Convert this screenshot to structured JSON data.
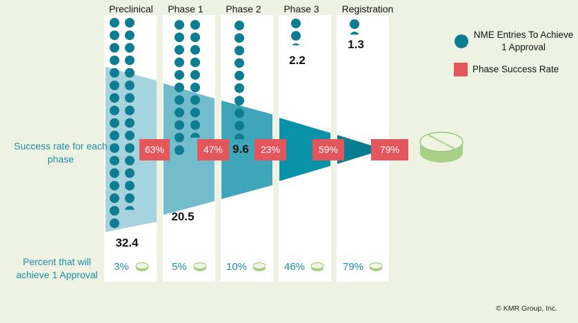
{
  "phases": [
    {
      "name": "Preclinical",
      "entries": "32.4",
      "approval_pct": "3%"
    },
    {
      "name": "Phase 1",
      "entries": "20.5",
      "approval_pct": "5%"
    },
    {
      "name": "Phase 2",
      "entries": "9.6",
      "approval_pct": "10%"
    },
    {
      "name": "Phase 3",
      "entries": "2.2",
      "approval_pct": "46%"
    },
    {
      "name": "Registration",
      "entries": "1.3",
      "approval_pct": "79%"
    }
  ],
  "success_rates": [
    "63%",
    "47%",
    "23%",
    "59%",
    "79%"
  ],
  "left_labels": {
    "success_rate": "Success rate for each phase",
    "approval": "Percent that will achieve 1 Approval"
  },
  "legend": {
    "entries": "NME Entries To Achieve 1 Approval",
    "success": "Phase Success Rate"
  },
  "copyright": "© KMR Group, Inc.",
  "colors": {
    "dot": "#0e7d91",
    "success_box": "#e2565c",
    "teal_text": "#1a8fa0",
    "funnel": [
      "#a5d4df",
      "#73bccb",
      "#3fa6b9",
      "#0a93a8",
      "#087d92"
    ],
    "column_bg": "#ffffff",
    "background": "#eef2e3"
  },
  "icons": [
    "pill-icon"
  ]
}
